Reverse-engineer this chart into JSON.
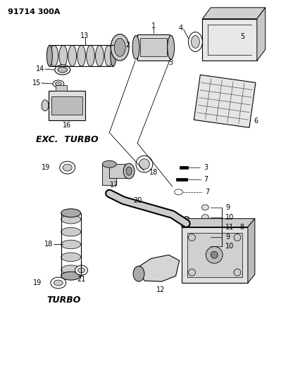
{
  "title": "91714 300A",
  "bg_color": "#ffffff",
  "text_color": "#000000",
  "figsize": [
    3.99,
    5.33
  ],
  "dpi": 100,
  "exc_turbo_label": "EXC.  TURBO",
  "turbo_label": "TURBO"
}
